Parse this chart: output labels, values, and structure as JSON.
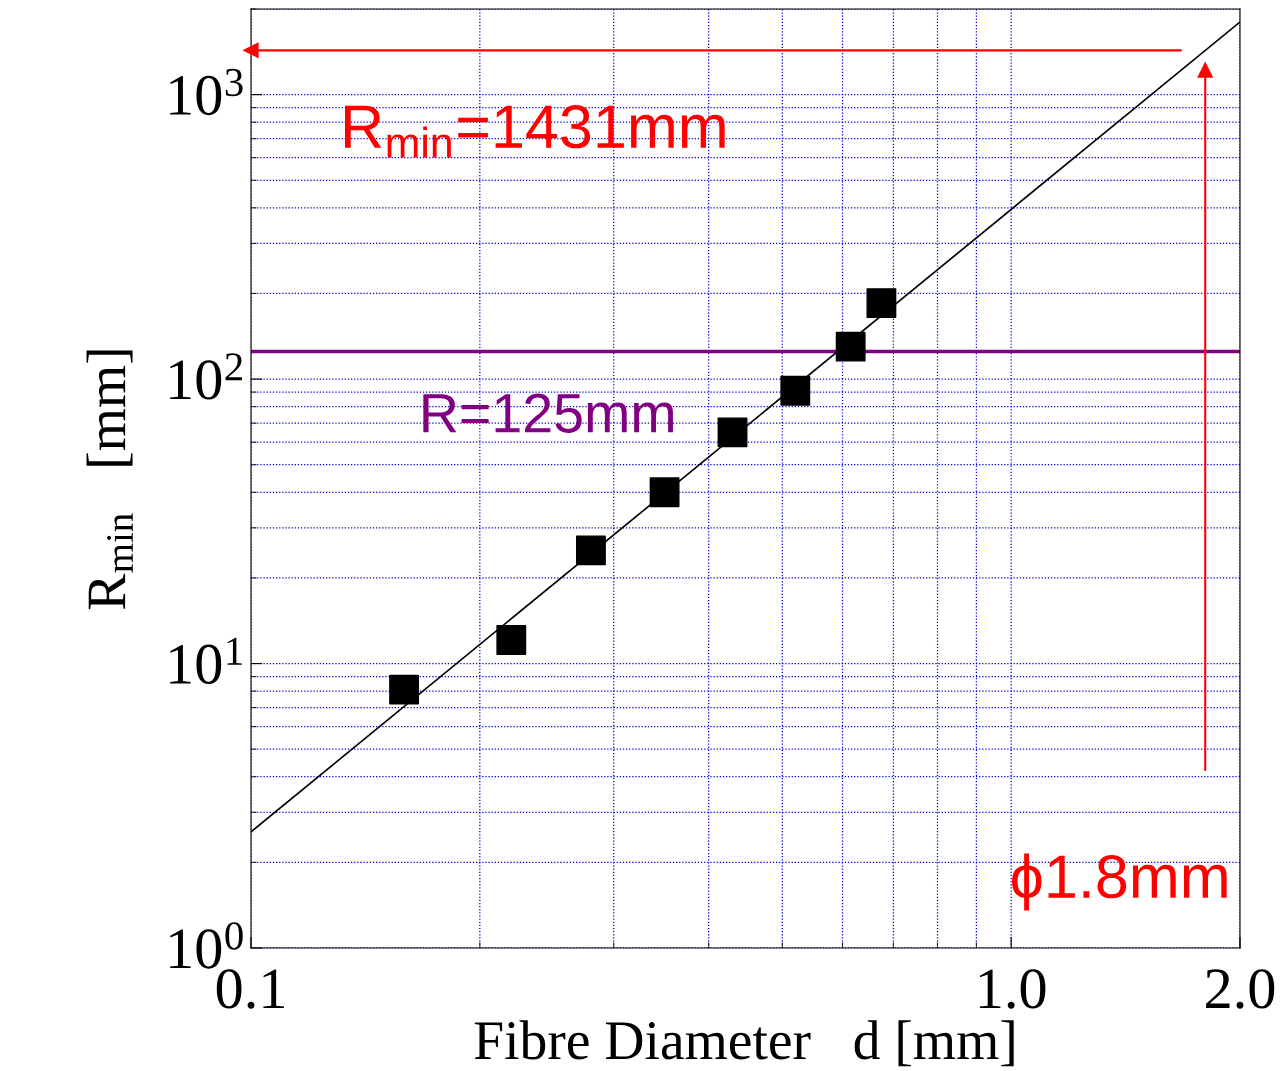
{
  "chart_data": {
    "type": "scatter",
    "xlabel": "Fibre Diameter   d [mm]",
    "ylabel": "R$_{min}$   [mm]",
    "log": "xy",
    "xlim": [
      0.1,
      2.0
    ],
    "ylim": [
      1,
      2000
    ],
    "xticks": [
      {
        "value": 0.1,
        "label": "0.1"
      },
      {
        "value": 1.0,
        "label": "1.0"
      },
      {
        "value": 2.0,
        "label": "2.0"
      }
    ],
    "yticks": [
      {
        "value": 1,
        "label": "10$^{0}$"
      },
      {
        "value": 10,
        "label": "10$^{1}$"
      },
      {
        "value": 100,
        "label": "10$^{2}$"
      },
      {
        "value": 1000,
        "label": "10$^{3}$"
      }
    ],
    "grid": true,
    "marker": "square",
    "series": [
      {
        "color": "#000000",
        "x": [
          0.159,
          0.22,
          0.28,
          0.35,
          0.43,
          0.52,
          0.615,
          0.675
        ],
        "values": [
          8.1,
          12.1,
          25,
          40,
          65,
          91,
          130,
          185
        ]
      },
      {
        "type": "line",
        "color": "#000000",
        "marker": "none",
        "x": [
          0.1,
          2.0
        ],
        "values": [
          2.56,
          1800
        ]
      }
    ],
    "ref_lines": [
      {
        "axis": "y",
        "value": 125,
        "label": "R=125mm",
        "color": "#800080"
      },
      {
        "axis": "y",
        "value": 1431,
        "label": "R$_{min}$=1431mm",
        "color": "#ff0000"
      },
      {
        "axis": "x",
        "value": 1.8,
        "label": "ϕ1.8mm",
        "color": "#ff0000"
      }
    ]
  }
}
